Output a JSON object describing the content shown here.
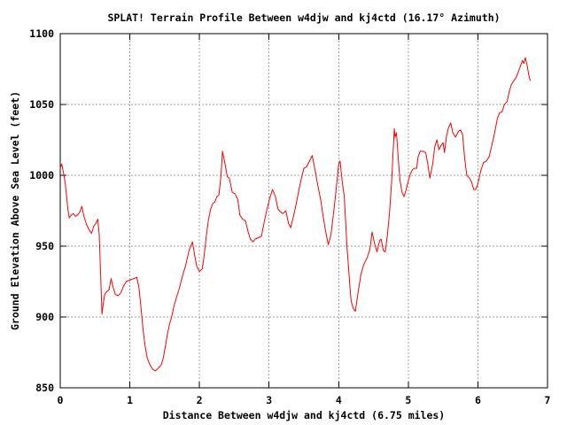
{
  "chart_data": {
    "type": "line",
    "title": "SPLAT! Terrain Profile Between w4djw and kj4ctd (16.17° Azimuth)",
    "xlabel": "Distance Between w4djw and kj4ctd (6.75 miles)",
    "ylabel": "Ground Elevation Above Sea Level (feet)",
    "xlim": [
      0,
      7
    ],
    "ylim": [
      850,
      1100
    ],
    "xticks": [
      0,
      1,
      2,
      3,
      4,
      5,
      6,
      7
    ],
    "yticks": [
      850,
      900,
      950,
      1000,
      1050,
      1100
    ],
    "grid": true,
    "legend": "none",
    "line_color": "#ff0000",
    "grid_color": "#a0a0a0",
    "axis_color": "#000000",
    "background_color": "#ffffff",
    "series": [
      {
        "name": "terrain-elevation-profile",
        "units": {
          "x": "miles",
          "y": "feet"
        },
        "points": [
          [
            0.0,
            1005
          ],
          [
            0.02,
            1008
          ],
          [
            0.05,
            1001
          ],
          [
            0.07,
            995
          ],
          [
            0.09,
            986
          ],
          [
            0.11,
            976
          ],
          [
            0.13,
            970
          ],
          [
            0.16,
            972
          ],
          [
            0.19,
            973
          ],
          [
            0.22,
            971
          ],
          [
            0.25,
            972
          ],
          [
            0.28,
            974
          ],
          [
            0.31,
            978
          ],
          [
            0.34,
            971
          ],
          [
            0.38,
            965
          ],
          [
            0.42,
            961
          ],
          [
            0.45,
            959
          ],
          [
            0.48,
            964
          ],
          [
            0.51,
            966
          ],
          [
            0.54,
            969
          ],
          [
            0.56,
            958
          ],
          [
            0.58,
            930
          ],
          [
            0.6,
            902
          ],
          [
            0.62,
            910
          ],
          [
            0.64,
            916
          ],
          [
            0.67,
            918
          ],
          [
            0.7,
            919
          ],
          [
            0.73,
            927
          ],
          [
            0.76,
            921
          ],
          [
            0.79,
            916
          ],
          [
            0.83,
            915
          ],
          [
            0.87,
            917
          ],
          [
            0.91,
            922
          ],
          [
            0.95,
            925
          ],
          [
            1.0,
            926
          ],
          [
            1.05,
            927
          ],
          [
            1.1,
            928
          ],
          [
            1.13,
            921
          ],
          [
            1.16,
            907
          ],
          [
            1.19,
            891
          ],
          [
            1.22,
            879
          ],
          [
            1.25,
            871
          ],
          [
            1.29,
            866
          ],
          [
            1.33,
            863
          ],
          [
            1.37,
            862
          ],
          [
            1.41,
            864
          ],
          [
            1.45,
            866
          ],
          [
            1.48,
            871
          ],
          [
            1.51,
            879
          ],
          [
            1.54,
            888
          ],
          [
            1.57,
            895
          ],
          [
            1.6,
            900
          ],
          [
            1.63,
            907
          ],
          [
            1.67,
            914
          ],
          [
            1.71,
            920
          ],
          [
            1.75,
            928
          ],
          [
            1.8,
            936
          ],
          [
            1.85,
            947
          ],
          [
            1.9,
            953
          ],
          [
            1.93,
            944
          ],
          [
            1.96,
            936
          ],
          [
            2.0,
            932
          ],
          [
            2.04,
            934
          ],
          [
            2.07,
            944
          ],
          [
            2.1,
            958
          ],
          [
            2.13,
            969
          ],
          [
            2.16,
            976
          ],
          [
            2.19,
            980
          ],
          [
            2.22,
            981
          ],
          [
            2.25,
            985
          ],
          [
            2.28,
            986
          ],
          [
            2.31,
            1000
          ],
          [
            2.33,
            1017
          ],
          [
            2.36,
            1010
          ],
          [
            2.4,
            999
          ],
          [
            2.43,
            998
          ],
          [
            2.47,
            988
          ],
          [
            2.51,
            987
          ],
          [
            2.55,
            983
          ],
          [
            2.58,
            972
          ],
          [
            2.62,
            969
          ],
          [
            2.66,
            968
          ],
          [
            2.7,
            960
          ],
          [
            2.73,
            955
          ],
          [
            2.77,
            953
          ],
          [
            2.8,
            955
          ],
          [
            2.85,
            956
          ],
          [
            2.89,
            957
          ],
          [
            2.93,
            967
          ],
          [
            2.97,
            976
          ],
          [
            3.01,
            984
          ],
          [
            3.05,
            990
          ],
          [
            3.09,
            985
          ],
          [
            3.13,
            976
          ],
          [
            3.17,
            974
          ],
          [
            3.2,
            973
          ],
          [
            3.24,
            975
          ],
          [
            3.28,
            966
          ],
          [
            3.31,
            963
          ],
          [
            3.35,
            971
          ],
          [
            3.39,
            980
          ],
          [
            3.43,
            990
          ],
          [
            3.46,
            997
          ],
          [
            3.5,
            1005
          ],
          [
            3.54,
            1006
          ],
          [
            3.58,
            1010
          ],
          [
            3.62,
            1014
          ],
          [
            3.66,
            1004
          ],
          [
            3.7,
            993
          ],
          [
            3.74,
            983
          ],
          [
            3.78,
            970
          ],
          [
            3.81,
            961
          ],
          [
            3.85,
            951
          ],
          [
            3.89,
            958
          ],
          [
            3.93,
            975
          ],
          [
            3.96,
            988
          ],
          [
            4.0,
            1008
          ],
          [
            4.02,
            1010
          ],
          [
            4.05,
            996
          ],
          [
            4.08,
            985
          ],
          [
            4.1,
            968
          ],
          [
            4.12,
            949
          ],
          [
            4.14,
            936
          ],
          [
            4.16,
            922
          ],
          [
            4.18,
            911
          ],
          [
            4.21,
            906
          ],
          [
            4.24,
            904
          ],
          [
            4.28,
            918
          ],
          [
            4.32,
            930
          ],
          [
            4.36,
            937
          ],
          [
            4.41,
            942
          ],
          [
            4.45,
            948
          ],
          [
            4.48,
            960
          ],
          [
            4.52,
            951
          ],
          [
            4.55,
            946
          ],
          [
            4.59,
            954
          ],
          [
            4.61,
            955
          ],
          [
            4.64,
            947
          ],
          [
            4.67,
            946
          ],
          [
            4.7,
            958
          ],
          [
            4.73,
            973
          ],
          [
            4.76,
            995
          ],
          [
            4.78,
            1015
          ],
          [
            4.8,
            1033
          ],
          [
            4.81,
            1027
          ],
          [
            4.83,
            1030
          ],
          [
            4.86,
            1009
          ],
          [
            4.88,
            997
          ],
          [
            4.91,
            988
          ],
          [
            4.94,
            985
          ],
          [
            4.97,
            990
          ],
          [
            5.0,
            996
          ],
          [
            5.03,
            1001
          ],
          [
            5.06,
            1004
          ],
          [
            5.09,
            1005
          ],
          [
            5.12,
            1005
          ],
          [
            5.14,
            1013
          ],
          [
            5.17,
            1017
          ],
          [
            5.21,
            1017
          ],
          [
            5.25,
            1016
          ],
          [
            5.28,
            1008
          ],
          [
            5.31,
            998
          ],
          [
            5.35,
            1008
          ],
          [
            5.38,
            1020
          ],
          [
            5.41,
            1025
          ],
          [
            5.44,
            1018
          ],
          [
            5.47,
            1021
          ],
          [
            5.5,
            1023
          ],
          [
            5.52,
            1016
          ],
          [
            5.55,
            1028
          ],
          [
            5.58,
            1034
          ],
          [
            5.61,
            1037
          ],
          [
            5.64,
            1030
          ],
          [
            5.68,
            1027
          ],
          [
            5.72,
            1031
          ],
          [
            5.75,
            1032
          ],
          [
            5.78,
            1029
          ],
          [
            5.81,
            1012
          ],
          [
            5.84,
            1000
          ],
          [
            5.88,
            998
          ],
          [
            5.91,
            995
          ],
          [
            5.94,
            990
          ],
          [
            5.97,
            990
          ],
          [
            6.0,
            994
          ],
          [
            6.04,
            1003
          ],
          [
            6.08,
            1009
          ],
          [
            6.12,
            1010
          ],
          [
            6.16,
            1013
          ],
          [
            6.2,
            1021
          ],
          [
            6.24,
            1030
          ],
          [
            6.28,
            1040
          ],
          [
            6.31,
            1044
          ],
          [
            6.35,
            1045
          ],
          [
            6.38,
            1050
          ],
          [
            6.42,
            1052
          ],
          [
            6.45,
            1059
          ],
          [
            6.48,
            1064
          ],
          [
            6.52,
            1067
          ],
          [
            6.55,
            1069
          ],
          [
            6.58,
            1073
          ],
          [
            6.61,
            1077
          ],
          [
            6.64,
            1081
          ],
          [
            6.66,
            1079
          ],
          [
            6.68,
            1083
          ],
          [
            6.71,
            1077
          ],
          [
            6.73,
            1071
          ],
          [
            6.75,
            1067
          ]
        ]
      }
    ]
  }
}
